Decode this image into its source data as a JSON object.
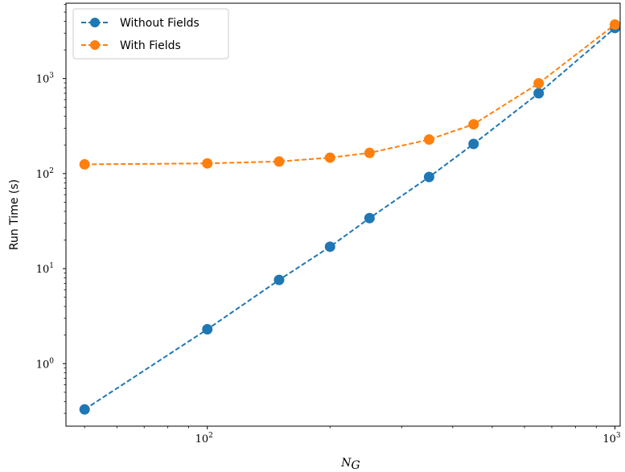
{
  "chart_data": {
    "type": "line",
    "x_scale": "log",
    "y_scale": "log",
    "xlabel": "N",
    "xlabel_sub": "G",
    "ylabel": "Run Time (s)",
    "xlim": [
      45,
      1030
    ],
    "ylim": [
      0.22,
      6200
    ],
    "x_ticks": [
      {
        "value": 100,
        "base": "10",
        "exp": "2"
      },
      {
        "value": 1000,
        "base": "10",
        "exp": "3"
      }
    ],
    "y_ticks": [
      {
        "value": 1,
        "base": "10",
        "exp": "0"
      },
      {
        "value": 10,
        "base": "10",
        "exp": "1"
      },
      {
        "value": 100,
        "base": "10",
        "exp": "2"
      },
      {
        "value": 1000,
        "base": "10",
        "exp": "3"
      }
    ],
    "legend_position": "top-left",
    "grid": false,
    "series": [
      {
        "name": "Without Fields",
        "color": "#1f77b4",
        "x": [
          50,
          100,
          150,
          200,
          250,
          350,
          450,
          650,
          1000
        ],
        "y": [
          0.33,
          2.3,
          7.6,
          17,
          34,
          92,
          205,
          700,
          3400
        ]
      },
      {
        "name": "With Fields",
        "color": "#ff7f0e",
        "x": [
          50,
          100,
          150,
          200,
          250,
          350,
          450,
          650,
          1000
        ],
        "y": [
          125,
          128,
          134,
          147,
          165,
          228,
          330,
          890,
          3700
        ]
      }
    ]
  }
}
